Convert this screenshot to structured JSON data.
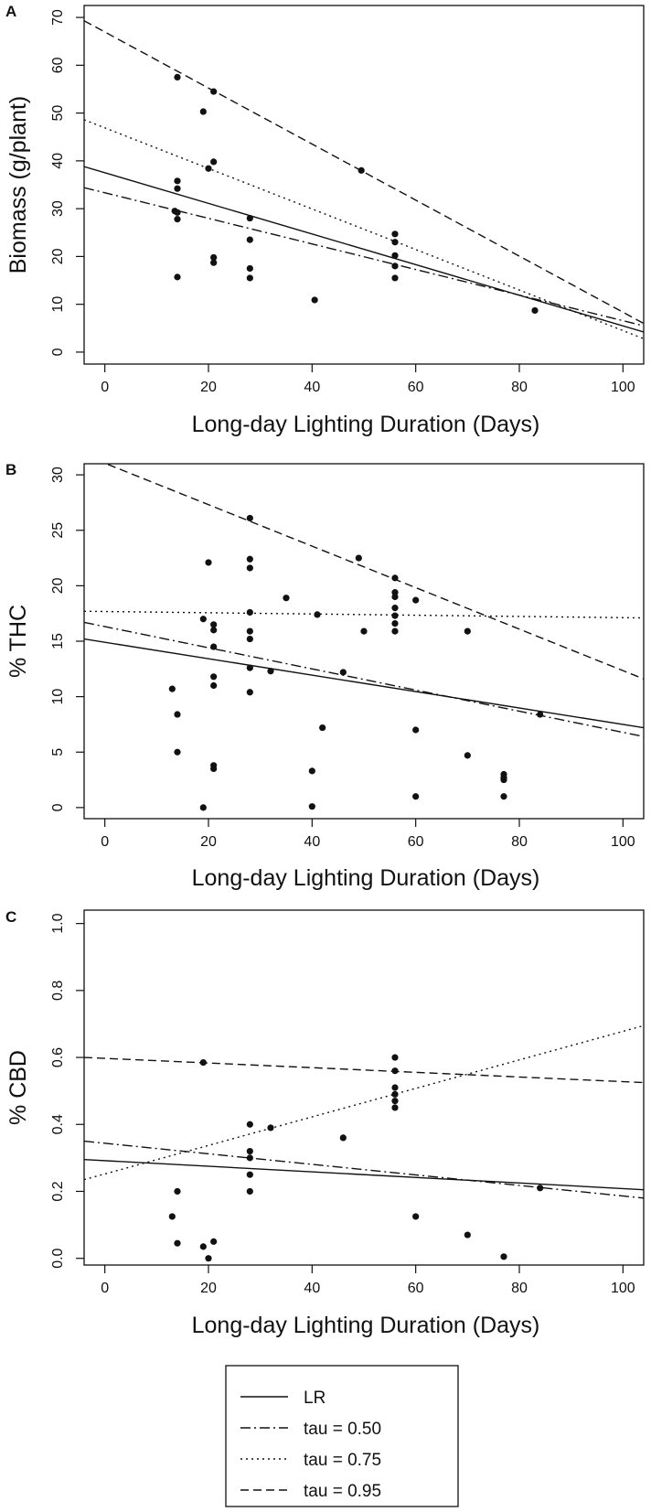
{
  "legend": {
    "entries": [
      {
        "label": "LR",
        "style": "solid"
      },
      {
        "label": "tau = 0.50",
        "style": "dashdot"
      },
      {
        "label": "tau = 0.75",
        "style": "dotted"
      },
      {
        "label": "tau = 0.95",
        "style": "dashed"
      }
    ]
  },
  "chart_data": [
    {
      "type": "scatter",
      "panel": "A",
      "xlabel": "Long-day Lighting Duration (Days)",
      "ylabel": "Biomass (g/plant)",
      "xlim": [
        -4,
        104
      ],
      "ylim": [
        -2.5,
        72.5
      ],
      "xticks": [
        0,
        20,
        40,
        60,
        80,
        100
      ],
      "yticks": [
        0,
        10,
        20,
        30,
        40,
        50,
        60,
        70
      ],
      "points": [
        [
          14,
          57.5
        ],
        [
          14,
          35.8
        ],
        [
          14,
          34.2
        ],
        [
          13.5,
          29.5
        ],
        [
          14,
          29.2
        ],
        [
          14,
          27.8
        ],
        [
          14,
          15.7
        ],
        [
          19,
          50.3
        ],
        [
          20,
          38.4
        ],
        [
          21,
          54.5
        ],
        [
          21,
          39.8
        ],
        [
          21,
          19.8
        ],
        [
          21,
          18.7
        ],
        [
          28,
          28.0
        ],
        [
          28,
          23.5
        ],
        [
          28,
          17.5
        ],
        [
          28,
          15.5
        ],
        [
          40.5,
          10.9
        ],
        [
          49.5,
          38.0
        ],
        [
          56,
          24.7
        ],
        [
          56,
          23.0
        ],
        [
          56,
          20.2
        ],
        [
          56,
          18.0
        ],
        [
          56,
          15.5
        ],
        [
          83,
          8.7
        ]
      ],
      "lines": [
        {
          "name": "LR",
          "style": "solid",
          "x": [
            -4,
            104
          ],
          "y": [
            38.8,
            4.2
          ]
        },
        {
          "name": "tau = 0.50",
          "style": "dashdot",
          "x": [
            -4,
            104
          ],
          "y": [
            34.4,
            5.5
          ]
        },
        {
          "name": "tau = 0.75",
          "style": "dotted",
          "x": [
            -4,
            104
          ],
          "y": [
            48.6,
            2.8
          ]
        },
        {
          "name": "tau = 0.95",
          "style": "dashed",
          "x": [
            -4,
            104
          ],
          "y": [
            69.3,
            6.0
          ]
        }
      ]
    },
    {
      "type": "scatter",
      "panel": "B",
      "xlabel": "Long-day Lighting Duration (Days)",
      "ylabel": "% THC",
      "xlim": [
        -4,
        104
      ],
      "ylim": [
        -1,
        31
      ],
      "xticks": [
        0,
        20,
        40,
        60,
        80,
        100
      ],
      "yticks": [
        0,
        5,
        10,
        15,
        20,
        25,
        30
      ],
      "points": [
        [
          13,
          10.7
        ],
        [
          14,
          8.4
        ],
        [
          14,
          5.0
        ],
        [
          19,
          17.0
        ],
        [
          19,
          0.0
        ],
        [
          20,
          22.1
        ],
        [
          21,
          16.5
        ],
        [
          21,
          16.0
        ],
        [
          21,
          14.5
        ],
        [
          21,
          11.8
        ],
        [
          21,
          11.0
        ],
        [
          21,
          3.8
        ],
        [
          21,
          3.5
        ],
        [
          28,
          26.1
        ],
        [
          28,
          22.4
        ],
        [
          28,
          21.6
        ],
        [
          28,
          17.6
        ],
        [
          28,
          15.9
        ],
        [
          28,
          15.2
        ],
        [
          28,
          12.6
        ],
        [
          28,
          10.4
        ],
        [
          32,
          12.3
        ],
        [
          35,
          18.9
        ],
        [
          40,
          3.3
        ],
        [
          40,
          0.1
        ],
        [
          41,
          17.4
        ],
        [
          42,
          7.2
        ],
        [
          46,
          12.2
        ],
        [
          49,
          22.5
        ],
        [
          50,
          15.9
        ],
        [
          56,
          20.7
        ],
        [
          56,
          19.4
        ],
        [
          56,
          19.0
        ],
        [
          56,
          18.0
        ],
        [
          56,
          17.3
        ],
        [
          56,
          16.6
        ],
        [
          56,
          15.9
        ],
        [
          60,
          18.7
        ],
        [
          60,
          7.0
        ],
        [
          60,
          1.0
        ],
        [
          70,
          15.9
        ],
        [
          70,
          4.7
        ],
        [
          77,
          3.0
        ],
        [
          77,
          2.7
        ],
        [
          77,
          2.5
        ],
        [
          77,
          1.0
        ],
        [
          84,
          8.4
        ]
      ],
      "lines": [
        {
          "name": "LR",
          "style": "solid",
          "x": [
            -4,
            104
          ],
          "y": [
            15.2,
            7.2
          ]
        },
        {
          "name": "tau = 0.50",
          "style": "dashdot",
          "x": [
            -4,
            104
          ],
          "y": [
            16.7,
            6.4
          ]
        },
        {
          "name": "tau = 0.75",
          "style": "dotted",
          "x": [
            -4,
            104
          ],
          "y": [
            17.7,
            17.1
          ]
        },
        {
          "name": "tau = 0.95",
          "style": "dashed",
          "x": [
            -4,
            104
          ],
          "y": [
            31.8,
            11.6
          ]
        }
      ]
    },
    {
      "type": "scatter",
      "panel": "C",
      "xlabel": "Long-day Lighting Duration (Days)",
      "ylabel": "% CBD",
      "xlim": [
        -4,
        104
      ],
      "ylim": [
        -0.02,
        1.04
      ],
      "xticks": [
        0,
        20,
        40,
        60,
        80,
        100
      ],
      "yticks": [
        0.0,
        0.2,
        0.4,
        0.6,
        0.8,
        1.0
      ],
      "points": [
        [
          13,
          0.125
        ],
        [
          14,
          0.2
        ],
        [
          14,
          0.045
        ],
        [
          19,
          0.035
        ],
        [
          19,
          0.585
        ],
        [
          20,
          0.0
        ],
        [
          21,
          0.05
        ],
        [
          28,
          0.4
        ],
        [
          28,
          0.32
        ],
        [
          28,
          0.3
        ],
        [
          28,
          0.25
        ],
        [
          28,
          0.2
        ],
        [
          32,
          0.39
        ],
        [
          46,
          0.36
        ],
        [
          56,
          0.6
        ],
        [
          56,
          0.56
        ],
        [
          56,
          0.51
        ],
        [
          56,
          0.49
        ],
        [
          56,
          0.47
        ],
        [
          56,
          0.45
        ],
        [
          60,
          0.125
        ],
        [
          70,
          0.07
        ],
        [
          77,
          0.005
        ],
        [
          84,
          0.21
        ]
      ],
      "lines": [
        {
          "name": "LR",
          "style": "solid",
          "x": [
            -4,
            104
          ],
          "y": [
            0.295,
            0.205
          ]
        },
        {
          "name": "tau = 0.50",
          "style": "dashdot",
          "x": [
            -4,
            104
          ],
          "y": [
            0.35,
            0.18
          ]
        },
        {
          "name": "tau = 0.75",
          "style": "dotted",
          "x": [
            -4,
            104
          ],
          "y": [
            0.235,
            0.695
          ]
        },
        {
          "name": "tau = 0.95",
          "style": "dashed",
          "x": [
            -4,
            104
          ],
          "y": [
            0.6,
            0.525
          ]
        }
      ]
    }
  ]
}
